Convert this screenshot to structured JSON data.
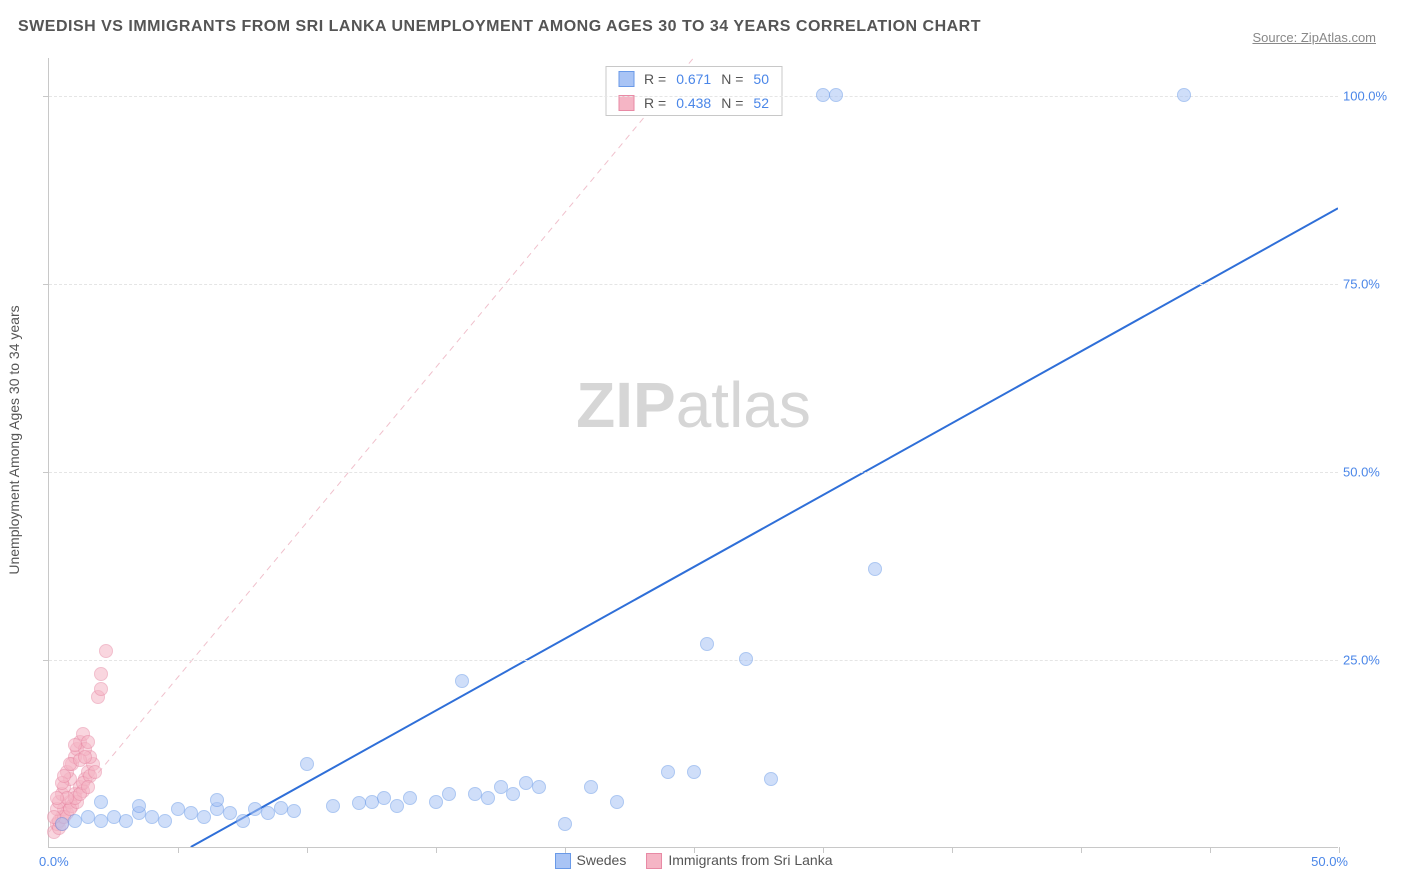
{
  "title": "SWEDISH VS IMMIGRANTS FROM SRI LANKA UNEMPLOYMENT AMONG AGES 30 TO 34 YEARS CORRELATION CHART",
  "source": "Source: ZipAtlas.com",
  "ylabel": "Unemployment Among Ages 30 to 34 years",
  "watermark_zip": "ZIP",
  "watermark_atlas": "atlas",
  "chart": {
    "type": "scatter",
    "xlim": [
      0,
      50
    ],
    "ylim": [
      0,
      105
    ],
    "xtick_positions": [
      5,
      10,
      15,
      20,
      25,
      30,
      35,
      40,
      45,
      50
    ],
    "ytick_positions": [
      25,
      50,
      75,
      100
    ],
    "ytick_labels": [
      "25.0%",
      "50.0%",
      "75.0%",
      "100.0%"
    ],
    "x_origin_label": "0.0%",
    "x_max_label": "50.0%",
    "grid_color": "#e5e5e5",
    "axis_color": "#c8c8c8",
    "background_color": "#ffffff",
    "tick_label_color": "#4a86e8",
    "point_radius": 7,
    "series": {
      "swedes": {
        "label": "Swedes",
        "color_fill": "#a9c4f5",
        "color_stroke": "#6a9ae8",
        "fill_opacity": 0.55,
        "R": "0.671",
        "N": "50",
        "trendline": {
          "x1": 5.5,
          "y1": 0,
          "x2": 50,
          "y2": 85,
          "color": "#2f6fd8",
          "width": 2,
          "dash": "none"
        },
        "points": [
          [
            0.5,
            3
          ],
          [
            1,
            3.5
          ],
          [
            1.5,
            4
          ],
          [
            2,
            3.5
          ],
          [
            2.5,
            4
          ],
          [
            3,
            3.5
          ],
          [
            3.5,
            4.5
          ],
          [
            4,
            4
          ],
          [
            4.5,
            3.5
          ],
          [
            5,
            5
          ],
          [
            5.5,
            4.5
          ],
          [
            6,
            4
          ],
          [
            6.5,
            5
          ],
          [
            7,
            4.5
          ],
          [
            7.5,
            3.5
          ],
          [
            8,
            5
          ],
          [
            8.5,
            4.5
          ],
          [
            9,
            5.2
          ],
          [
            9.5,
            4.8
          ],
          [
            10,
            11
          ],
          [
            11,
            5.5
          ],
          [
            12,
            5.8
          ],
          [
            12.5,
            6
          ],
          [
            13,
            6.5
          ],
          [
            13.5,
            5.5
          ],
          [
            14,
            6.5
          ],
          [
            15,
            6
          ],
          [
            15.5,
            7
          ],
          [
            16,
            22
          ],
          [
            16.5,
            7
          ],
          [
            17,
            6.5
          ],
          [
            17.5,
            8
          ],
          [
            18,
            7
          ],
          [
            18.5,
            8.5
          ],
          [
            19,
            8
          ],
          [
            20,
            3
          ],
          [
            21,
            8
          ],
          [
            22,
            6
          ],
          [
            24,
            10
          ],
          [
            25,
            10
          ],
          [
            25.5,
            27
          ],
          [
            27,
            25
          ],
          [
            28,
            9
          ],
          [
            30,
            100
          ],
          [
            30.5,
            100
          ],
          [
            32,
            37
          ],
          [
            44,
            100
          ],
          [
            2,
            6
          ],
          [
            3.5,
            5.5
          ],
          [
            6.5,
            6.2
          ]
        ]
      },
      "immigrants": {
        "label": "Immigrants from Sri Lanka",
        "color_fill": "#f5b5c5",
        "color_stroke": "#e88aa5",
        "fill_opacity": 0.55,
        "R": "0.438",
        "N": "52",
        "trendline": {
          "x1": 0,
          "y1": 2,
          "x2": 25,
          "y2": 105,
          "color": "#f0c0cc",
          "width": 1,
          "dash": "6,5"
        },
        "points": [
          [
            0.2,
            2
          ],
          [
            0.3,
            3
          ],
          [
            0.4,
            2.5
          ],
          [
            0.5,
            4
          ],
          [
            0.4,
            3.5
          ],
          [
            0.6,
            5
          ],
          [
            0.5,
            3
          ],
          [
            0.7,
            4.5
          ],
          [
            0.8,
            6
          ],
          [
            0.6,
            4
          ],
          [
            0.9,
            5.5
          ],
          [
            1,
            7
          ],
          [
            0.8,
            5
          ],
          [
            1.1,
            6
          ],
          [
            1.2,
            8
          ],
          [
            1,
            6.5
          ],
          [
            1.3,
            7.5
          ],
          [
            1.4,
            9
          ],
          [
            1.2,
            7
          ],
          [
            1.5,
            10
          ],
          [
            1.3,
            8.5
          ],
          [
            1.6,
            9.5
          ],
          [
            1.7,
            11
          ],
          [
            1.5,
            8
          ],
          [
            1.8,
            10
          ],
          [
            1.6,
            12
          ],
          [
            0.3,
            5
          ],
          [
            0.4,
            6
          ],
          [
            0.5,
            7
          ],
          [
            0.6,
            8
          ],
          [
            0.7,
            6.5
          ],
          [
            0.8,
            9
          ],
          [
            0.7,
            10
          ],
          [
            0.9,
            11
          ],
          [
            1,
            12
          ],
          [
            1.1,
            13
          ],
          [
            1.2,
            14
          ],
          [
            1.3,
            15
          ],
          [
            1.4,
            13
          ],
          [
            1.5,
            14
          ],
          [
            1.9,
            20
          ],
          [
            2,
            21
          ],
          [
            2,
            23
          ],
          [
            2.2,
            26
          ],
          [
            0.2,
            4
          ],
          [
            0.3,
            6.5
          ],
          [
            0.5,
            8.5
          ],
          [
            0.6,
            9.5
          ],
          [
            0.8,
            11
          ],
          [
            1,
            13.5
          ],
          [
            1.2,
            11.5
          ],
          [
            1.4,
            12
          ]
        ]
      }
    },
    "legend_top": {
      "r_label": "R =",
      "n_label": "N ="
    }
  }
}
